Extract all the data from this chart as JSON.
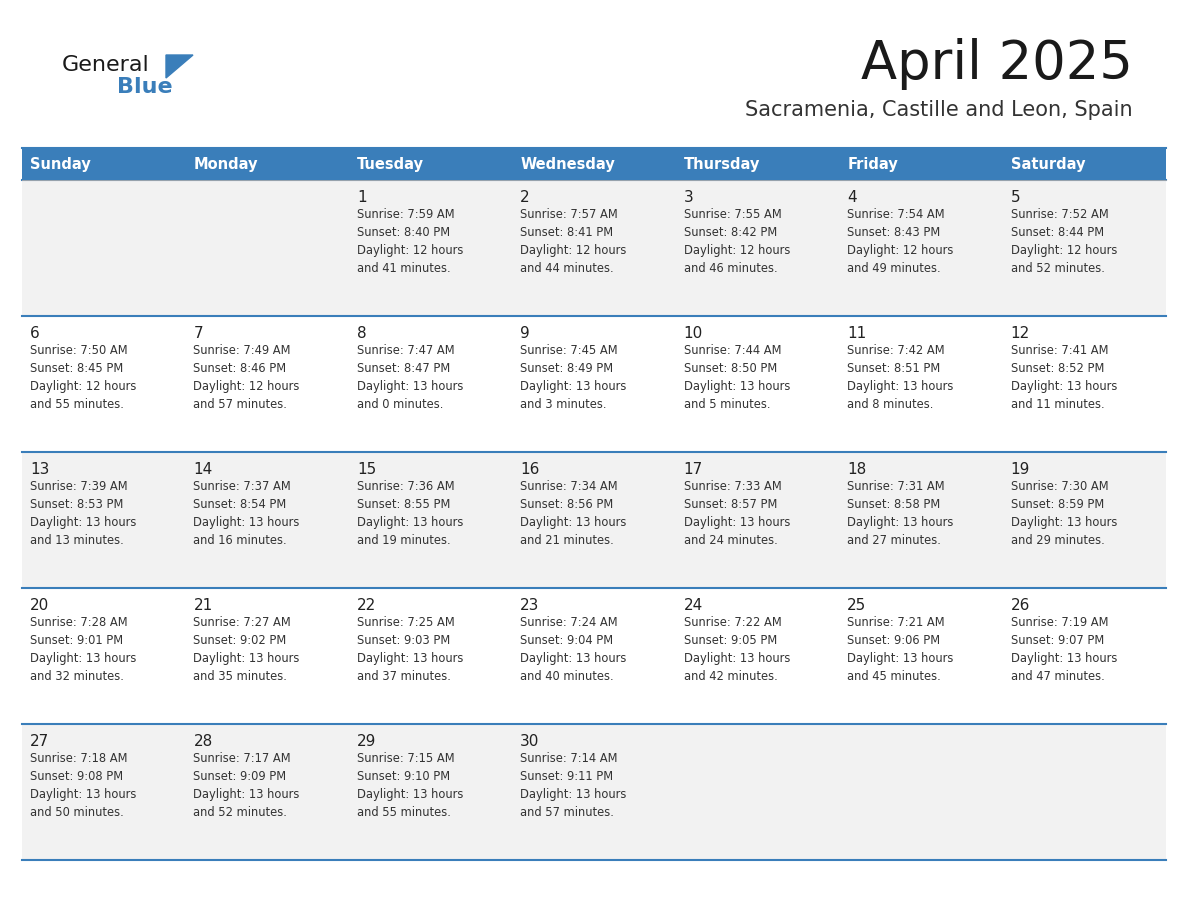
{
  "title": "April 2025",
  "subtitle": "Sacramenia, Castille and Leon, Spain",
  "header_bg_color": "#3A7EBA",
  "header_text_color": "#FFFFFF",
  "row_bg_row0": "#F2F2F2",
  "row_bg_row1": "#FFFFFF",
  "row_bg_row2": "#F2F2F2",
  "row_bg_row3": "#FFFFFF",
  "row_bg_row4": "#F2F2F2",
  "separator_color": "#3A7EBA",
  "text_color": "#333333",
  "day_num_color": "#222222",
  "days_of_week": [
    "Sunday",
    "Monday",
    "Tuesday",
    "Wednesday",
    "Thursday",
    "Friday",
    "Saturday"
  ],
  "calendar_data": [
    [
      {
        "day": "",
        "info": ""
      },
      {
        "day": "",
        "info": ""
      },
      {
        "day": "1",
        "info": "Sunrise: 7:59 AM\nSunset: 8:40 PM\nDaylight: 12 hours\nand 41 minutes."
      },
      {
        "day": "2",
        "info": "Sunrise: 7:57 AM\nSunset: 8:41 PM\nDaylight: 12 hours\nand 44 minutes."
      },
      {
        "day": "3",
        "info": "Sunrise: 7:55 AM\nSunset: 8:42 PM\nDaylight: 12 hours\nand 46 minutes."
      },
      {
        "day": "4",
        "info": "Sunrise: 7:54 AM\nSunset: 8:43 PM\nDaylight: 12 hours\nand 49 minutes."
      },
      {
        "day": "5",
        "info": "Sunrise: 7:52 AM\nSunset: 8:44 PM\nDaylight: 12 hours\nand 52 minutes."
      }
    ],
    [
      {
        "day": "6",
        "info": "Sunrise: 7:50 AM\nSunset: 8:45 PM\nDaylight: 12 hours\nand 55 minutes."
      },
      {
        "day": "7",
        "info": "Sunrise: 7:49 AM\nSunset: 8:46 PM\nDaylight: 12 hours\nand 57 minutes."
      },
      {
        "day": "8",
        "info": "Sunrise: 7:47 AM\nSunset: 8:47 PM\nDaylight: 13 hours\nand 0 minutes."
      },
      {
        "day": "9",
        "info": "Sunrise: 7:45 AM\nSunset: 8:49 PM\nDaylight: 13 hours\nand 3 minutes."
      },
      {
        "day": "10",
        "info": "Sunrise: 7:44 AM\nSunset: 8:50 PM\nDaylight: 13 hours\nand 5 minutes."
      },
      {
        "day": "11",
        "info": "Sunrise: 7:42 AM\nSunset: 8:51 PM\nDaylight: 13 hours\nand 8 minutes."
      },
      {
        "day": "12",
        "info": "Sunrise: 7:41 AM\nSunset: 8:52 PM\nDaylight: 13 hours\nand 11 minutes."
      }
    ],
    [
      {
        "day": "13",
        "info": "Sunrise: 7:39 AM\nSunset: 8:53 PM\nDaylight: 13 hours\nand 13 minutes."
      },
      {
        "day": "14",
        "info": "Sunrise: 7:37 AM\nSunset: 8:54 PM\nDaylight: 13 hours\nand 16 minutes."
      },
      {
        "day": "15",
        "info": "Sunrise: 7:36 AM\nSunset: 8:55 PM\nDaylight: 13 hours\nand 19 minutes."
      },
      {
        "day": "16",
        "info": "Sunrise: 7:34 AM\nSunset: 8:56 PM\nDaylight: 13 hours\nand 21 minutes."
      },
      {
        "day": "17",
        "info": "Sunrise: 7:33 AM\nSunset: 8:57 PM\nDaylight: 13 hours\nand 24 minutes."
      },
      {
        "day": "18",
        "info": "Sunrise: 7:31 AM\nSunset: 8:58 PM\nDaylight: 13 hours\nand 27 minutes."
      },
      {
        "day": "19",
        "info": "Sunrise: 7:30 AM\nSunset: 8:59 PM\nDaylight: 13 hours\nand 29 minutes."
      }
    ],
    [
      {
        "day": "20",
        "info": "Sunrise: 7:28 AM\nSunset: 9:01 PM\nDaylight: 13 hours\nand 32 minutes."
      },
      {
        "day": "21",
        "info": "Sunrise: 7:27 AM\nSunset: 9:02 PM\nDaylight: 13 hours\nand 35 minutes."
      },
      {
        "day": "22",
        "info": "Sunrise: 7:25 AM\nSunset: 9:03 PM\nDaylight: 13 hours\nand 37 minutes."
      },
      {
        "day": "23",
        "info": "Sunrise: 7:24 AM\nSunset: 9:04 PM\nDaylight: 13 hours\nand 40 minutes."
      },
      {
        "day": "24",
        "info": "Sunrise: 7:22 AM\nSunset: 9:05 PM\nDaylight: 13 hours\nand 42 minutes."
      },
      {
        "day": "25",
        "info": "Sunrise: 7:21 AM\nSunset: 9:06 PM\nDaylight: 13 hours\nand 45 minutes."
      },
      {
        "day": "26",
        "info": "Sunrise: 7:19 AM\nSunset: 9:07 PM\nDaylight: 13 hours\nand 47 minutes."
      }
    ],
    [
      {
        "day": "27",
        "info": "Sunrise: 7:18 AM\nSunset: 9:08 PM\nDaylight: 13 hours\nand 50 minutes."
      },
      {
        "day": "28",
        "info": "Sunrise: 7:17 AM\nSunset: 9:09 PM\nDaylight: 13 hours\nand 52 minutes."
      },
      {
        "day": "29",
        "info": "Sunrise: 7:15 AM\nSunset: 9:10 PM\nDaylight: 13 hours\nand 55 minutes."
      },
      {
        "day": "30",
        "info": "Sunrise: 7:14 AM\nSunset: 9:11 PM\nDaylight: 13 hours\nand 57 minutes."
      },
      {
        "day": "",
        "info": ""
      },
      {
        "day": "",
        "info": ""
      },
      {
        "day": "",
        "info": ""
      }
    ]
  ]
}
